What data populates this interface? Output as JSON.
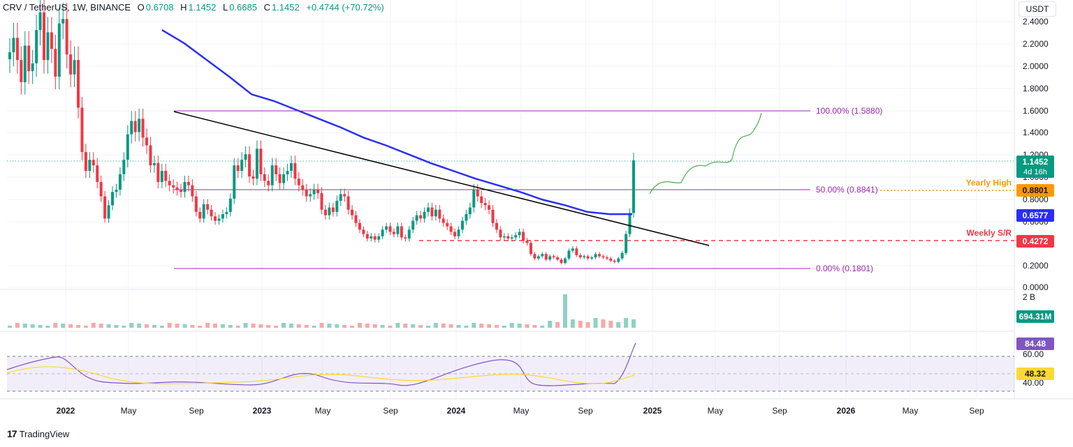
{
  "header": {
    "symbol": "CRV / TetherUS, 1W, BINANCE",
    "o_label": "O",
    "o": "0.6708",
    "h_label": "H",
    "h": "1.1452",
    "l_label": "L",
    "l": "0.6685",
    "c_label": "C",
    "c": "1.1452",
    "change": "+0.4744 (+70.72%)"
  },
  "currency": "USDT",
  "brand": {
    "logo": "17",
    "name": "TradingView"
  },
  "colors": {
    "up": "#089981",
    "down": "#f23645",
    "ma": "#2a2ef5",
    "fib": "#9c27b0",
    "trend": "#000000",
    "projection": "#4caf50",
    "support": "#f23645",
    "yearly": "#ff9800",
    "rsi": "#7e57c2",
    "rsi_ma": "#fdd835"
  },
  "chart_data": {
    "type": "candlestick",
    "y_ticks": [
      "2.4000",
      "2.2000",
      "2.0000",
      "1.8000",
      "1.6000",
      "1.4000",
      "1.2000",
      "1.0000",
      "0.8000",
      "0.6000",
      "0.2000",
      "0.0000"
    ],
    "x_ticks": [
      "2022",
      "May",
      "Sep",
      "2023",
      "May",
      "Sep",
      "2024",
      "May",
      "Sep",
      "2025",
      "May",
      "Sep",
      "2026",
      "May",
      "Sep"
    ],
    "ylim": [
      0,
      2.45
    ],
    "price_labels": {
      "last": "1.1452",
      "countdown": "4d 16h",
      "yearly_high": "0.8801",
      "ma": "0.6577",
      "weekly_sr": "0.4272"
    },
    "annotations": {
      "yearly_high": "Yearly High",
      "weekly_sr": "Weekly S/R",
      "fib_100": "100.00% (1.5880)",
      "fib_50": "50.00% (0.8841)",
      "fib_0": "0.00% (0.1801)"
    },
    "candles_close": [
      2.12,
      2.25,
      2.05,
      1.85,
      2.18,
      1.95,
      2.02,
      2.32,
      2.48,
      2.05,
      2.3,
      2.15,
      1.9,
      2.38,
      2.42,
      2.1,
      1.92,
      2.05,
      1.62,
      1.22,
      1.05,
      1.15,
      1.1,
      0.95,
      0.82,
      0.62,
      0.74,
      0.86,
      0.88,
      1.02,
      1.15,
      1.38,
      1.5,
      1.4,
      1.52,
      1.35,
      1.28,
      1.1,
      1.12,
      0.95,
      1.05,
      0.96,
      0.92,
      0.9,
      0.88,
      0.86,
      0.95,
      0.92,
      0.82,
      0.68,
      0.62,
      0.75,
      0.7,
      0.64,
      0.6,
      0.62,
      0.66,
      0.68,
      0.8,
      1.1,
      1.05,
      1.15,
      1.2,
      1.0,
      0.98,
      1.25,
      1.02,
      0.96,
      0.92,
      1.1,
      1.02,
      0.94,
      1.02,
      1.05,
      1.12,
      0.98,
      0.92,
      0.88,
      0.82,
      0.84,
      0.88,
      0.85,
      0.7,
      0.65,
      0.72,
      0.68,
      0.78,
      0.84,
      0.82,
      0.7,
      0.65,
      0.58,
      0.52,
      0.48,
      0.44,
      0.46,
      0.43,
      0.46,
      0.52,
      0.55,
      0.5,
      0.48,
      0.55,
      0.45,
      0.44,
      0.52,
      0.6,
      0.65,
      0.62,
      0.68,
      0.72,
      0.64,
      0.7,
      0.62,
      0.58,
      0.55,
      0.5,
      0.46,
      0.52,
      0.6,
      0.66,
      0.72,
      0.88,
      0.82,
      0.76,
      0.74,
      0.7,
      0.58,
      0.52,
      0.45,
      0.46,
      0.44,
      0.45,
      0.47,
      0.5,
      0.42,
      0.4,
      0.3,
      0.26,
      0.28,
      0.3,
      0.25,
      0.28,
      0.27,
      0.25,
      0.22,
      0.26,
      0.33,
      0.35,
      0.29,
      0.27,
      0.28,
      0.26,
      0.27,
      0.3,
      0.28,
      0.27,
      0.26,
      0.24,
      0.23,
      0.26,
      0.31,
      0.48,
      0.67,
      1.1452
    ],
    "ma_close_values": [
      2.32,
      2.2,
      2.05,
      1.9,
      1.74,
      1.68,
      1.6,
      1.52,
      1.44,
      1.35,
      1.28,
      1.2,
      1.12,
      1.05,
      0.98,
      0.92,
      0.86,
      0.79,
      0.74,
      0.68,
      0.66,
      0.66
    ],
    "volume_label": "2 B",
    "volume_last": "694.31M",
    "rsi": {
      "value": "84.48",
      "ma_value": "48.32",
      "ticks": [
        "60.00",
        "40.00"
      ]
    }
  }
}
